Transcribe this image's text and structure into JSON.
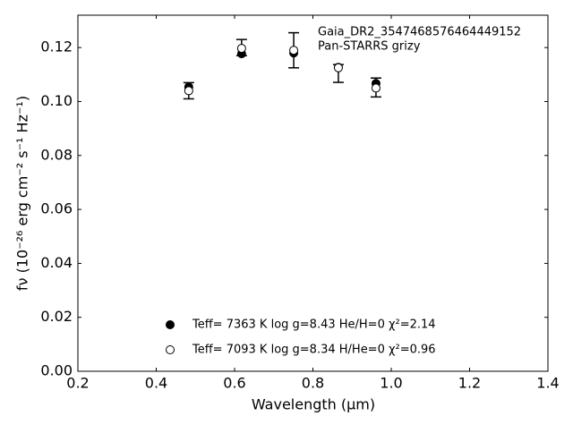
{
  "chart_data": {
    "type": "scatter",
    "x_label": "Wavelength (μm)",
    "y_label": "fν (10⁻²⁶ erg cm⁻² s⁻¹ Hz⁻¹)",
    "legend_title": "Gaia_DR2_3547468576464449152",
    "x": [
      0.483,
      0.618,
      0.751,
      0.865,
      0.961
    ],
    "series": [
      {
        "name": "Pan-STARRS grizy",
        "kind": "errorbar",
        "color": "#000000",
        "values": [
          0.104,
          0.12,
          0.119,
          0.1104,
          0.1052
        ],
        "errors": [
          0.003,
          0.003,
          0.0065,
          0.0033,
          0.0035
        ]
      },
      {
        "name": "Teff=  7363 K  log g=8.43  He/H=0  χ²=2.14",
        "kind": "filled",
        "color": "#000000",
        "values": [
          0.1054,
          0.1177,
          0.118,
          0.1127,
          0.1067
        ]
      },
      {
        "name": "Teff=  7093 K  log g=8.34  H/He=0  χ²=0.96",
        "kind": "open",
        "color": "#000000",
        "values": [
          0.104,
          0.1197,
          0.119,
          0.1125,
          0.105
        ]
      }
    ],
    "xlim": [
      0.2,
      1.4
    ],
    "ylim": [
      0,
      0.132
    ],
    "xticks": [
      0.2,
      0.4,
      0.6,
      0.8,
      {
        "value": 1.0,
        "label": "1.0"
      },
      1.2,
      1.4
    ],
    "yticks": [
      {
        "value": 0,
        "label": "0.00"
      },
      0.02,
      0.04,
      0.06,
      0.08,
      {
        "value": 0.1,
        "label": "0.10"
      },
      0.12
    ]
  }
}
